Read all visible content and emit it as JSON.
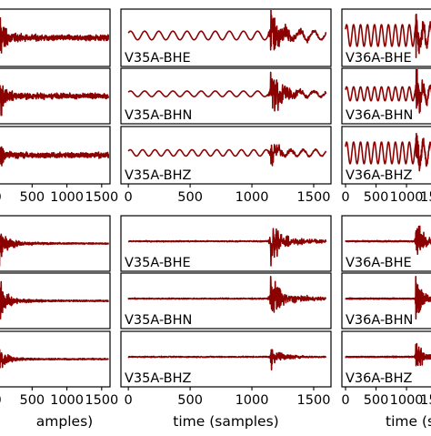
{
  "chart_data": {
    "type": "line",
    "title": "",
    "xlabel": "time (samples)",
    "ylabel": "",
    "grid": false,
    "legend": "none",
    "trace_color": "#8b0000",
    "xlim": [
      0,
      1600
    ],
    "xticks": [
      0,
      500,
      1000,
      1500
    ],
    "first_column_xlabel_visible": "amples)",
    "groups": [
      {
        "name": "top",
        "columns": [
          {
            "station": "",
            "components": [
              {
                "label": "",
                "event_sample": 0,
                "peak": 0.9,
                "background": 0.08,
                "bg_cycles": 0
              },
              {
                "label": "",
                "event_sample": 0,
                "peak": 0.9,
                "background": 0.08,
                "bg_cycles": 0
              },
              {
                "label": "",
                "event_sample": 0,
                "peak": 0.5,
                "background": 0.08,
                "bg_cycles": 0
              }
            ]
          },
          {
            "station": "V35A",
            "components": [
              {
                "label": "V35A-BHE",
                "event_sample": 1150,
                "peak": 0.9,
                "background": 0.18,
                "bg_cycles": 14
              },
              {
                "label": "V35A-BHN",
                "event_sample": 1150,
                "peak": 0.9,
                "background": 0.12,
                "bg_cycles": 14
              },
              {
                "label": "V35A-BHZ",
                "event_sample": 1150,
                "peak": 0.35,
                "background": 0.13,
                "bg_cycles": 16
              }
            ]
          },
          {
            "station": "V36A",
            "components": [
              {
                "label": "V36A-BHE",
                "event_sample": 1150,
                "peak": 0.9,
                "background": 0.45,
                "bg_cycles": 14
              },
              {
                "label": "V36A-BHN",
                "event_sample": 1150,
                "peak": 0.9,
                "background": 0.3,
                "bg_cycles": 14
              },
              {
                "label": "V36A-BHZ",
                "event_sample": 1150,
                "peak": 0.6,
                "background": 0.45,
                "bg_cycles": 14
              }
            ]
          }
        ]
      },
      {
        "name": "bottom",
        "columns": [
          {
            "station": "",
            "components": [
              {
                "label": "",
                "event_sample": 0,
                "peak": 0.9,
                "background": 0.02,
                "bg_cycles": 0
              },
              {
                "label": "",
                "event_sample": 0,
                "peak": 0.9,
                "background": 0.02,
                "bg_cycles": 0
              },
              {
                "label": "",
                "event_sample": 0,
                "peak": 0.6,
                "background": 0.02,
                "bg_cycles": 0
              }
            ]
          },
          {
            "station": "V35A",
            "components": [
              {
                "label": "V35A-BHE",
                "event_sample": 1150,
                "peak": 0.9,
                "background": 0.02,
                "bg_cycles": 0
              },
              {
                "label": "V35A-BHN",
                "event_sample": 1150,
                "peak": 0.9,
                "background": 0.02,
                "bg_cycles": 0
              },
              {
                "label": "V35A-BHZ",
                "event_sample": 1150,
                "peak": 0.35,
                "background": 0.02,
                "bg_cycles": 0
              }
            ]
          },
          {
            "station": "V36A",
            "components": [
              {
                "label": "V36A-BHE",
                "event_sample": 1150,
                "peak": 0.9,
                "background": 0.02,
                "bg_cycles": 0
              },
              {
                "label": "V36A-BHN",
                "event_sample": 1150,
                "peak": 0.9,
                "background": 0.02,
                "bg_cycles": 0
              },
              {
                "label": "V36A-BHZ",
                "event_sample": 1150,
                "peak": 0.6,
                "background": 0.02,
                "bg_cycles": 0
              }
            ]
          }
        ]
      }
    ]
  }
}
